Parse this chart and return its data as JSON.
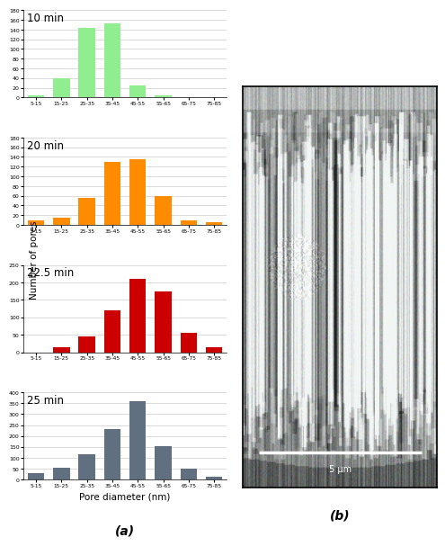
{
  "categories": [
    "5-15",
    "15-25",
    "25-35",
    "35-45",
    "45-55",
    "55-65",
    "65-75",
    "75-85"
  ],
  "charts": [
    {
      "label": "10 min",
      "values": [
        5,
        40,
        143,
        152,
        25,
        5,
        0,
        0
      ],
      "color": "#90EE90",
      "ymax": 180,
      "yticks": [
        0,
        20,
        40,
        60,
        80,
        100,
        120,
        140,
        160,
        180
      ]
    },
    {
      "label": "20 min",
      "values": [
        10,
        15,
        55,
        130,
        135,
        60,
        10,
        5
      ],
      "color": "#FF8C00",
      "ymax": 180,
      "yticks": [
        0,
        20,
        40,
        60,
        80,
        100,
        120,
        140,
        160,
        180
      ]
    },
    {
      "label": "22.5 min",
      "values": [
        0,
        15,
        45,
        120,
        210,
        175,
        55,
        15
      ],
      "color": "#CC0000",
      "ymax": 250,
      "yticks": [
        0,
        50,
        100,
        150,
        200,
        250
      ]
    },
    {
      "label": "25 min",
      "values": [
        30,
        55,
        115,
        230,
        360,
        155,
        50,
        15
      ],
      "color": "#607080",
      "ymax": 400,
      "yticks": [
        0,
        50,
        100,
        150,
        200,
        250,
        300,
        350,
        400
      ]
    }
  ],
  "ylabel": "Number of pores",
  "xlabel": "Pore diameter (nm)",
  "label_a": "(a)",
  "label_b": "(b)",
  "background": "#ffffff",
  "sem_tint": [
    180,
    200,
    195
  ]
}
